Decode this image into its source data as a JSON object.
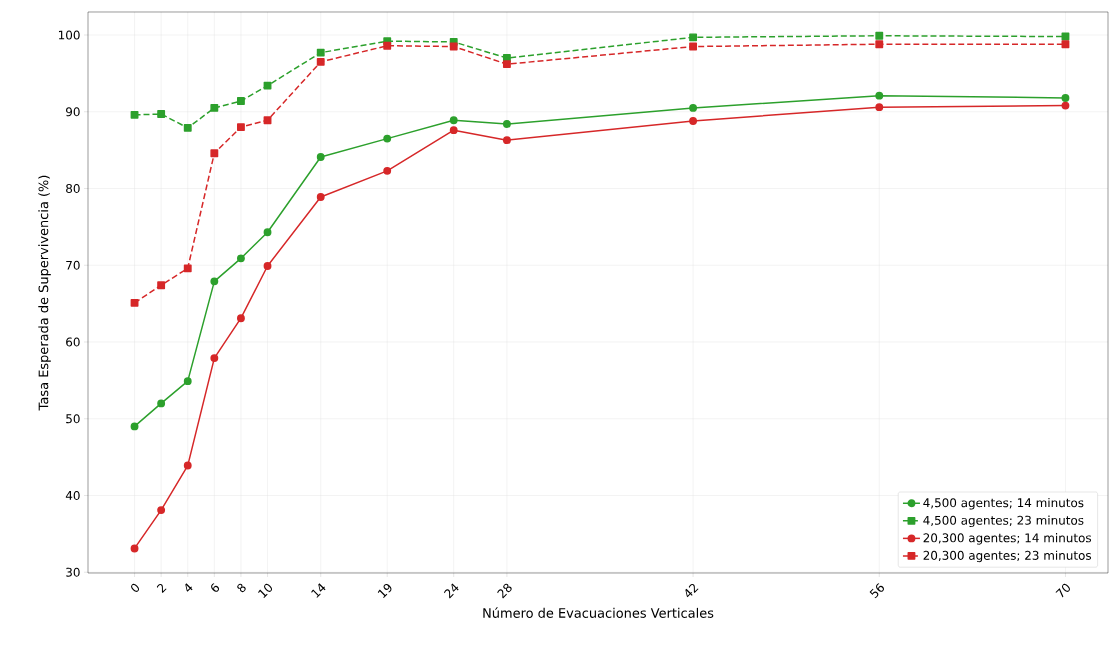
{
  "chart_data": {
    "type": "line",
    "xlabel": "Número de Evacuaciones Verticales",
    "ylabel": "Tasa Esperada de Supervivencia (%)",
    "x": [
      0,
      2,
      4,
      6,
      8,
      10,
      14,
      19,
      24,
      28,
      42,
      56,
      70
    ],
    "series": [
      {
        "name": "4,500 agentes; 14 minutos",
        "color": "#2ca02c",
        "marker": "circle",
        "line_style": "solid",
        "values": [
          49.0,
          52.0,
          54.9,
          67.9,
          70.9,
          74.3,
          84.1,
          86.5,
          88.9,
          88.4,
          90.5,
          92.1,
          91.8
        ]
      },
      {
        "name": "4,500 agentes; 23 minutos",
        "color": "#2ca02c",
        "marker": "square",
        "line_style": "dashed",
        "values": [
          89.6,
          89.7,
          87.9,
          90.5,
          91.4,
          93.4,
          97.7,
          99.2,
          99.1,
          97.0,
          99.7,
          99.9,
          99.8
        ]
      },
      {
        "name": "20,300 agentes; 14 minutos",
        "color": "#d62728",
        "marker": "circle",
        "line_style": "solid",
        "values": [
          33.1,
          38.1,
          43.9,
          57.9,
          63.1,
          69.9,
          78.9,
          82.3,
          87.6,
          86.3,
          88.8,
          90.6,
          90.8
        ]
      },
      {
        "name": "20,300 agentes; 23 minutos",
        "color": "#d62728",
        "marker": "square",
        "line_style": "dashed",
        "values": [
          65.1,
          67.4,
          69.6,
          84.6,
          88.0,
          88.9,
          96.5,
          98.6,
          98.5,
          96.2,
          98.5,
          98.8,
          98.8
        ]
      }
    ],
    "xlim": [
      -3.5,
      73.2
    ],
    "ylim": [
      29.9,
      103.0
    ],
    "xticks": [
      0,
      2,
      4,
      6,
      8,
      10,
      14,
      19,
      24,
      28,
      42,
      56,
      70
    ],
    "yticks": [
      30,
      40,
      50,
      60,
      70,
      80,
      90,
      100
    ],
    "grid": true,
    "legend": "bottom right"
  }
}
